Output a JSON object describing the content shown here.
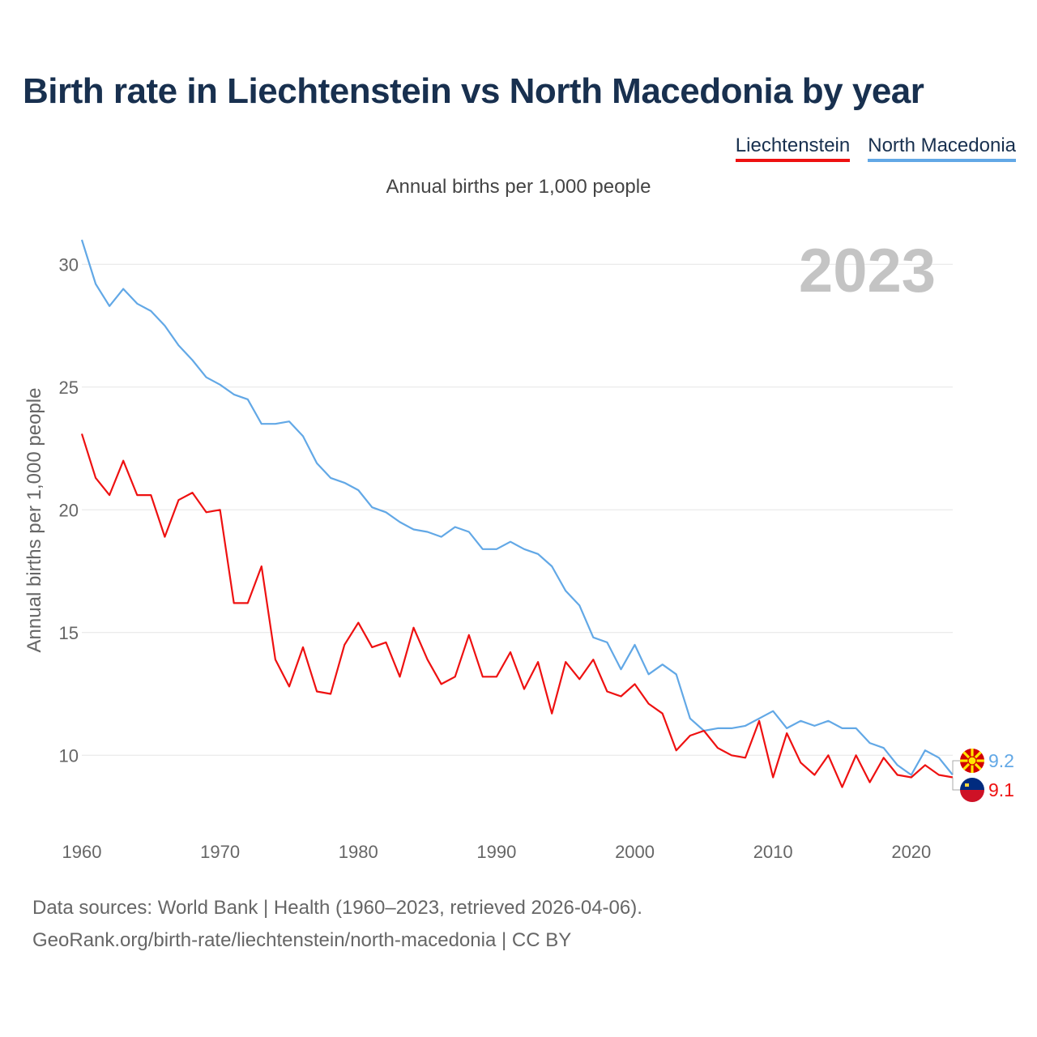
{
  "title": "Birth rate in Liechtenstein vs North Macedonia by year",
  "legend": [
    "Liechtenstein",
    "North Macedonia"
  ],
  "subtitle": "Annual births per 1,000 people",
  "footer": {
    "source": "Data sources: World Bank | Health (1960–2023, retrieved 2026-04-06).",
    "url": "GeoRank.org/birth-rate/liechtenstein/north-macedonia | CC BY"
  },
  "colors": {
    "liechtenstein": "#ee1111",
    "north_macedonia": "#62a8e6",
    "year_watermark": "#c4c4c4",
    "grid": "#e6e6e6"
  },
  "chart_data": {
    "type": "line",
    "title": "Birth rate in Liechtenstein vs North Macedonia by year",
    "xlabel": "",
    "ylabel": "Annual births per 1,000 people",
    "xlim": [
      1960,
      2023
    ],
    "ylim": [
      7.5,
      31
    ],
    "xticks": [
      1960,
      1970,
      1980,
      1990,
      2000,
      2010,
      2020
    ],
    "yticks": [
      10,
      15,
      20,
      25,
      30
    ],
    "year_label": "2023",
    "x": [
      1960,
      1961,
      1962,
      1963,
      1964,
      1965,
      1966,
      1967,
      1968,
      1969,
      1970,
      1971,
      1972,
      1973,
      1974,
      1975,
      1976,
      1977,
      1978,
      1979,
      1980,
      1981,
      1982,
      1983,
      1984,
      1985,
      1986,
      1987,
      1988,
      1989,
      1990,
      1991,
      1992,
      1993,
      1994,
      1995,
      1996,
      1997,
      1998,
      1999,
      2000,
      2001,
      2002,
      2003,
      2004,
      2005,
      2006,
      2007,
      2008,
      2009,
      2010,
      2011,
      2012,
      2013,
      2014,
      2015,
      2016,
      2017,
      2018,
      2019,
      2020,
      2021,
      2022,
      2023
    ],
    "series": [
      {
        "name": "North Macedonia",
        "color": "#62a8e6",
        "end_label": "9.2",
        "values": [
          31.0,
          29.2,
          28.3,
          29.0,
          28.4,
          28.1,
          27.5,
          26.7,
          26.1,
          25.4,
          25.1,
          24.7,
          24.5,
          23.5,
          23.5,
          23.6,
          23.0,
          21.9,
          21.3,
          21.1,
          20.8,
          20.1,
          19.9,
          19.5,
          19.2,
          19.1,
          18.9,
          19.3,
          19.1,
          18.4,
          18.4,
          18.7,
          18.4,
          18.2,
          17.7,
          16.7,
          16.1,
          14.8,
          14.6,
          13.5,
          14.5,
          13.3,
          13.7,
          13.3,
          11.5,
          11.0,
          11.1,
          11.1,
          11.2,
          11.5,
          11.8,
          11.1,
          11.4,
          11.2,
          11.4,
          11.1,
          11.1,
          10.5,
          10.3,
          9.6,
          9.2,
          10.2,
          9.9,
          9.2
        ]
      },
      {
        "name": "Liechtenstein",
        "color": "#ee1111",
        "end_label": "9.1",
        "values": [
          23.1,
          21.3,
          20.6,
          22.0,
          20.6,
          20.6,
          18.9,
          20.4,
          20.7,
          19.9,
          20.0,
          16.2,
          16.2,
          17.7,
          13.9,
          12.8,
          14.4,
          12.6,
          12.5,
          14.5,
          15.4,
          14.4,
          14.6,
          13.2,
          15.2,
          13.9,
          12.9,
          13.2,
          14.9,
          13.2,
          13.2,
          14.2,
          12.7,
          13.8,
          11.7,
          13.8,
          13.1,
          13.9,
          12.6,
          12.4,
          12.9,
          12.1,
          11.7,
          10.2,
          10.8,
          11.0,
          10.3,
          10.0,
          9.9,
          11.4,
          9.1,
          10.9,
          9.7,
          9.2,
          10.0,
          8.7,
          10.0,
          8.9,
          9.9,
          9.2,
          9.1,
          9.6,
          9.2,
          9.1
        ]
      }
    ]
  }
}
